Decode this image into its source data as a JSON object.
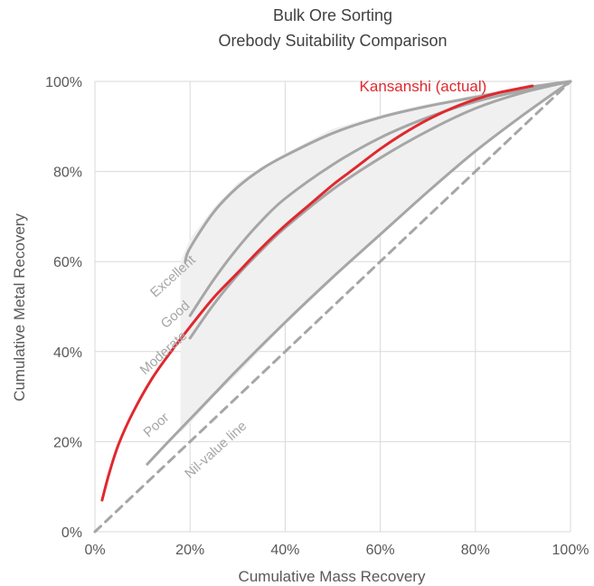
{
  "chart_data": {
    "type": "line",
    "title": "Bulk Ore Sorting",
    "subtitle": "Orebody Suitability Comparison",
    "xlabel": "Cumulative Mass Recovery",
    "ylabel": "Cumulative Metal Recovery",
    "xlim": [
      0,
      100
    ],
    "ylim": [
      0,
      100
    ],
    "x_ticks": [
      "0%",
      "20%",
      "40%",
      "60%",
      "80%",
      "100%"
    ],
    "y_ticks": [
      "0%",
      "20%",
      "40%",
      "60%",
      "80%",
      "100%"
    ],
    "grid": true,
    "shaded_region": {
      "x": [
        18,
        20,
        25,
        30,
        35,
        40,
        50,
        60,
        70,
        80,
        90,
        100,
        90,
        80,
        70,
        60,
        50,
        40,
        30,
        25,
        20,
        18
      ],
      "y": [
        60,
        65,
        72,
        77.5,
        81,
        84,
        89.5,
        92.5,
        95,
        97,
        98.5,
        100,
        92.5,
        84.5,
        75.5,
        66,
        56,
        46,
        35,
        30,
        24,
        22
      ]
    },
    "series": [
      {
        "name": "Excellent",
        "color": "#a6a6a6",
        "x": [
          19,
          20,
          25,
          30,
          35,
          40,
          50,
          60,
          70,
          80,
          90,
          100
        ],
        "y": [
          60,
          63,
          71,
          76.5,
          80.5,
          83.5,
          88.5,
          92,
          94.5,
          96.5,
          98.5,
          100
        ]
      },
      {
        "name": "Good",
        "color": "#a6a6a6",
        "x": [
          20,
          25,
          30,
          35,
          40,
          50,
          60,
          70,
          80,
          90,
          100
        ],
        "y": [
          48,
          56,
          63,
          69,
          74,
          81.5,
          87.5,
          92,
          95.5,
          98,
          100
        ]
      },
      {
        "name": "Moderate",
        "color": "#a6a6a6",
        "x": [
          20,
          25,
          30,
          35,
          40,
          50,
          60,
          70,
          80,
          90,
          100
        ],
        "y": [
          43,
          50.5,
          57,
          62.5,
          67.5,
          76,
          83,
          89,
          94,
          97.5,
          100
        ]
      },
      {
        "name": "Poor",
        "color": "#a6a6a6",
        "x": [
          11,
          15,
          20,
          25,
          30,
          40,
          50,
          60,
          70,
          80,
          90,
          100
        ],
        "y": [
          15,
          19.5,
          25,
          30.5,
          36,
          46.5,
          56.5,
          66,
          75.5,
          84.5,
          92.5,
          100
        ]
      },
      {
        "name": "Nil-value line",
        "color": "#a6a6a6",
        "dashed": true,
        "x": [
          0,
          100
        ],
        "y": [
          0,
          100
        ]
      },
      {
        "name": "Kansanshi (actual)",
        "color": "#e0282e",
        "x": [
          1.5,
          3,
          5,
          8,
          12,
          16,
          20,
          25,
          30,
          35,
          40,
          45,
          50,
          55,
          60,
          65,
          70,
          75,
          80,
          85,
          92
        ],
        "y": [
          7,
          13,
          19.5,
          26.5,
          34,
          40,
          45.5,
          52,
          57.5,
          63,
          68,
          72.5,
          77,
          81,
          85,
          88.5,
          91.5,
          94,
          96,
          97.5,
          99
        ]
      }
    ]
  }
}
